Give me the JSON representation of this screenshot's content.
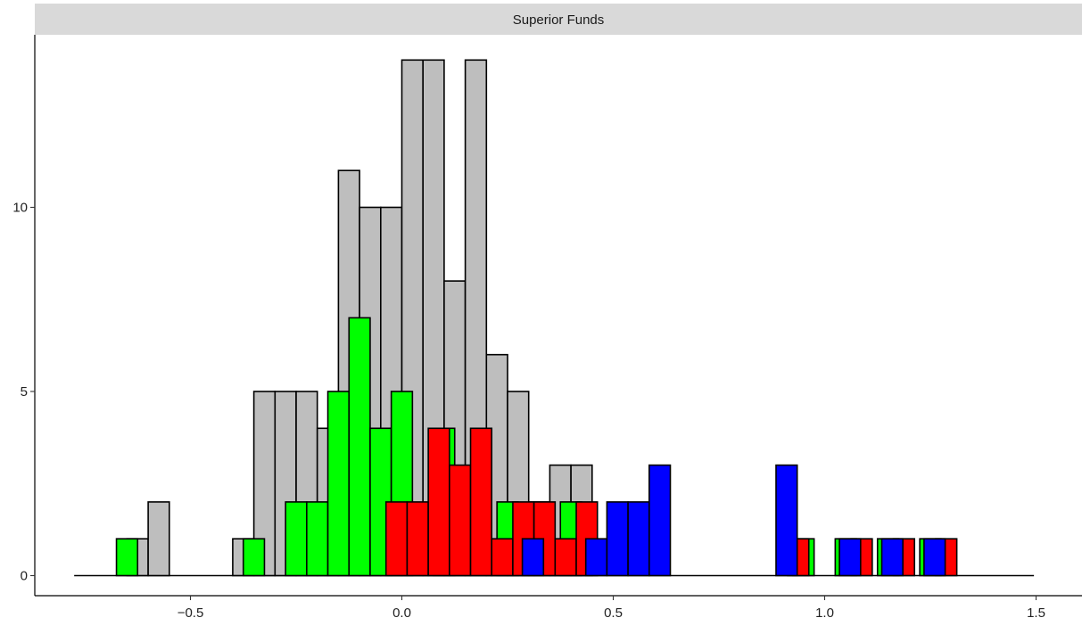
{
  "chart_data": {
    "type": "bar",
    "title": "",
    "panel_title": "Superior Funds",
    "xlabel": "",
    "ylabel": "",
    "xlim": [
      -0.8,
      1.52
    ],
    "ylim": [
      0,
      14.5
    ],
    "grid": false,
    "x_ticks": [
      {
        "value": -0.5,
        "label": "−0.5"
      },
      {
        "value": 0.0,
        "label": "0.0"
      },
      {
        "value": 0.5,
        "label": "0.5"
      },
      {
        "value": 1.0,
        "label": "1.0"
      },
      {
        "value": 1.5,
        "label": "1.5"
      }
    ],
    "y_ticks": [
      {
        "value": 0,
        "label": "0"
      },
      {
        "value": 5,
        "label": "5"
      },
      {
        "value": 10,
        "label": "10"
      }
    ],
    "bin_width": 0.05,
    "baseline": {
      "from": -0.775,
      "to": 1.495
    },
    "series": [
      {
        "name": "",
        "color": "#bebebe",
        "bars": [
          {
            "x": -0.625,
            "value": 1
          },
          {
            "x": -0.575,
            "value": 2
          },
          {
            "x": -0.375,
            "value": 1
          },
          {
            "x": -0.325,
            "value": 5
          },
          {
            "x": -0.275,
            "value": 5
          },
          {
            "x": -0.225,
            "value": 5
          },
          {
            "x": -0.175,
            "value": 4
          },
          {
            "x": -0.125,
            "value": 11
          },
          {
            "x": -0.075,
            "value": 10
          },
          {
            "x": -0.025,
            "value": 10
          },
          {
            "x": 0.025,
            "value": 14
          },
          {
            "x": 0.075,
            "value": 14
          },
          {
            "x": 0.125,
            "value": 8
          },
          {
            "x": 0.175,
            "value": 14
          },
          {
            "x": 0.225,
            "value": 6
          },
          {
            "x": 0.275,
            "value": 5
          },
          {
            "x": 0.325,
            "value": 2
          },
          {
            "x": 0.375,
            "value": 3
          },
          {
            "x": 0.425,
            "value": 3
          }
        ]
      },
      {
        "name": "",
        "color": "#00ff00",
        "bars": [
          {
            "x": -0.65,
            "value": 1
          },
          {
            "x": -0.35,
            "value": 1
          },
          {
            "x": -0.25,
            "value": 2
          },
          {
            "x": -0.2,
            "value": 2
          },
          {
            "x": -0.15,
            "value": 5
          },
          {
            "x": -0.1,
            "value": 7
          },
          {
            "x": -0.05,
            "value": 4
          },
          {
            "x": 0.0,
            "value": 5
          },
          {
            "x": 0.1,
            "value": 4
          },
          {
            "x": 0.25,
            "value": 2
          },
          {
            "x": 0.4,
            "value": 2
          },
          {
            "x": 0.95,
            "value": 1
          },
          {
            "x": 1.05,
            "value": 1
          },
          {
            "x": 1.15,
            "value": 1
          },
          {
            "x": 1.25,
            "value": 1
          }
        ]
      },
      {
        "name": "",
        "color": "#ff0000",
        "bars": [
          {
            "x": -0.0125,
            "value": 2
          },
          {
            "x": 0.0375,
            "value": 2
          },
          {
            "x": 0.0875,
            "value": 4
          },
          {
            "x": 0.1375,
            "value": 3
          },
          {
            "x": 0.1875,
            "value": 4
          },
          {
            "x": 0.2375,
            "value": 1
          },
          {
            "x": 0.2875,
            "value": 2
          },
          {
            "x": 0.3375,
            "value": 2
          },
          {
            "x": 0.3875,
            "value": 1
          },
          {
            "x": 0.4375,
            "value": 2
          },
          {
            "x": 0.9375,
            "value": 1
          },
          {
            "x": 1.0875,
            "value": 1
          },
          {
            "x": 1.1875,
            "value": 1
          },
          {
            "x": 1.2875,
            "value": 1
          }
        ]
      },
      {
        "name": "",
        "color": "#0000ff",
        "bars": [
          {
            "x": 0.31,
            "value": 1
          },
          {
            "x": 0.46,
            "value": 1
          },
          {
            "x": 0.51,
            "value": 2
          },
          {
            "x": 0.56,
            "value": 2
          },
          {
            "x": 0.61,
            "value": 3
          },
          {
            "x": 0.91,
            "value": 3
          },
          {
            "x": 1.06,
            "value": 1
          },
          {
            "x": 1.16,
            "value": 1
          },
          {
            "x": 1.26,
            "value": 1
          }
        ]
      }
    ]
  }
}
